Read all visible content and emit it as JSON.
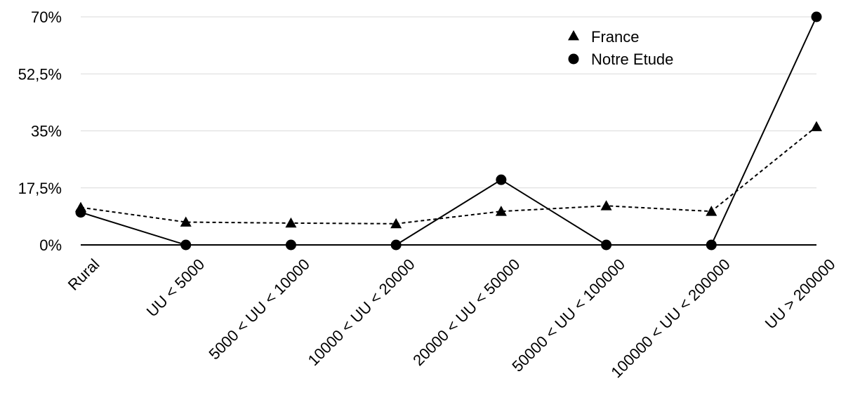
{
  "chart_data": {
    "type": "line",
    "categories": [
      "Rural",
      "UU < 5000",
      "5000 < UU < 10000",
      "10000 < UU < 20000",
      "20000 < UU < 50000",
      "50000 < UU < 100000",
      "100000 < UU < 200000",
      "UU > 200000"
    ],
    "y_ticks": [
      "0%",
      "17,5%",
      "35%",
      "52,5%",
      "70%"
    ],
    "ylim": [
      0,
      70
    ],
    "grid": true,
    "legend_position": "top-right",
    "series": [
      {
        "name": "France",
        "marker": "triangle",
        "line_style": "dashed",
        "values": [
          11.5,
          7.0,
          6.7,
          6.5,
          10.3,
          12.0,
          10.3,
          36.3
        ]
      },
      {
        "name": "Notre Etude",
        "marker": "circle",
        "line_style": "solid",
        "values": [
          10.0,
          0,
          0,
          0,
          20.0,
          0,
          0,
          70.0
        ]
      }
    ],
    "colors": {
      "line": "#000000",
      "grid": "#d9d9d9"
    }
  }
}
